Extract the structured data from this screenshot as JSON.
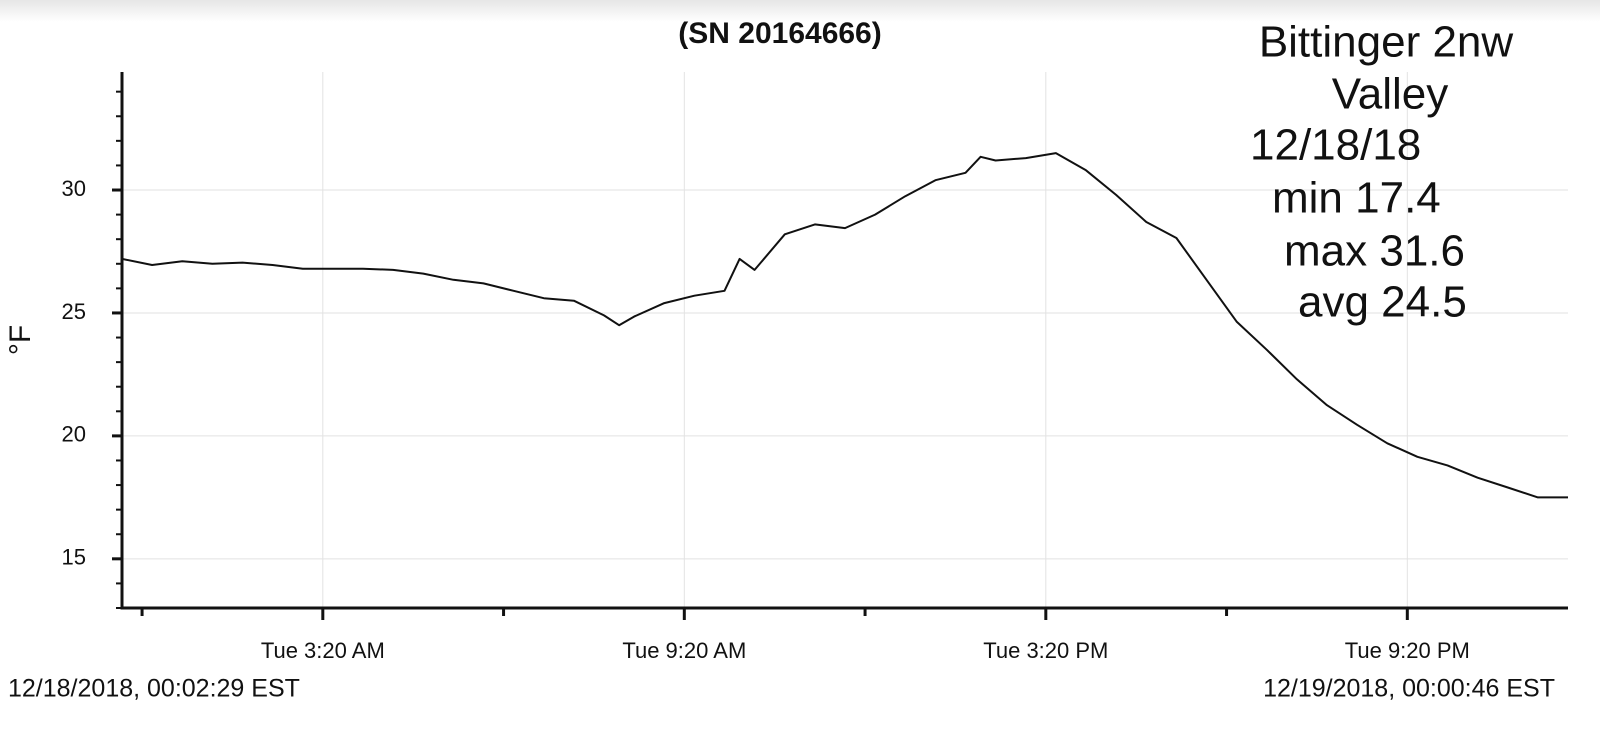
{
  "chart_data": {
    "type": "line",
    "title": "(SN 20164666)",
    "y_label": "°F",
    "annotation": [
      "Bittinger 2nw",
      "Valley",
      "12/18/18",
      "min 17.4",
      "max 31.6",
      "avg 24.5"
    ],
    "start_label": "12/18/2018, 00:02:29 EST",
    "end_label": "12/19/2018, 00:00:46 EST",
    "color": "#111111",
    "grid": true,
    "x": [
      0,
      0.5,
      1,
      1.5,
      2,
      2.5,
      3,
      3.5,
      4,
      4.5,
      5,
      5.5,
      6,
      6.5,
      7,
      7.5,
      8,
      8.25,
      8.5,
      9,
      9.5,
      10,
      10.25,
      10.5,
      11,
      11.5,
      12,
      12.5,
      13,
      13.5,
      14,
      14.25,
      14.5,
      15,
      15.5,
      16,
      16.5,
      17,
      17.5,
      18,
      18.5,
      19,
      19.5,
      20,
      20.5,
      21,
      21.5,
      22,
      22.5,
      23,
      23.5,
      24
    ],
    "values": [
      27.2,
      26.95,
      27.1,
      27.0,
      27.05,
      26.95,
      26.8,
      26.8,
      26.8,
      26.75,
      26.6,
      26.35,
      26.2,
      25.9,
      25.6,
      25.5,
      24.9,
      24.5,
      24.85,
      25.4,
      25.7,
      25.9,
      27.2,
      26.75,
      28.2,
      28.6,
      28.45,
      29.0,
      29.75,
      30.4,
      30.7,
      31.35,
      31.2,
      31.3,
      31.5,
      30.8,
      29.8,
      28.7,
      28.05,
      26.35,
      24.65,
      23.5,
      22.3,
      21.25,
      20.45,
      19.7,
      19.15,
      18.8,
      18.3,
      17.9,
      17.5,
      17.5
    ],
    "xlim": [
      0,
      24
    ],
    "xticks": [
      {
        "value": 3.333,
        "label": "Tue 3:20 AM"
      },
      {
        "value": 9.333,
        "label": "Tue 9:20 AM"
      },
      {
        "value": 15.333,
        "label": "Tue 3:20 PM"
      },
      {
        "value": 21.333,
        "label": "Tue 9:20 PM"
      }
    ],
    "xminor_ticks": [
      0.333,
      6.333,
      12.333,
      18.333
    ],
    "ylim": [
      13,
      34.8
    ],
    "yticks": [
      15,
      20,
      25,
      30
    ],
    "yminor_ticks": [
      13,
      14,
      16,
      17,
      18,
      19,
      21,
      22,
      23,
      24,
      26,
      27,
      28,
      29,
      31,
      32,
      33,
      34
    ]
  }
}
